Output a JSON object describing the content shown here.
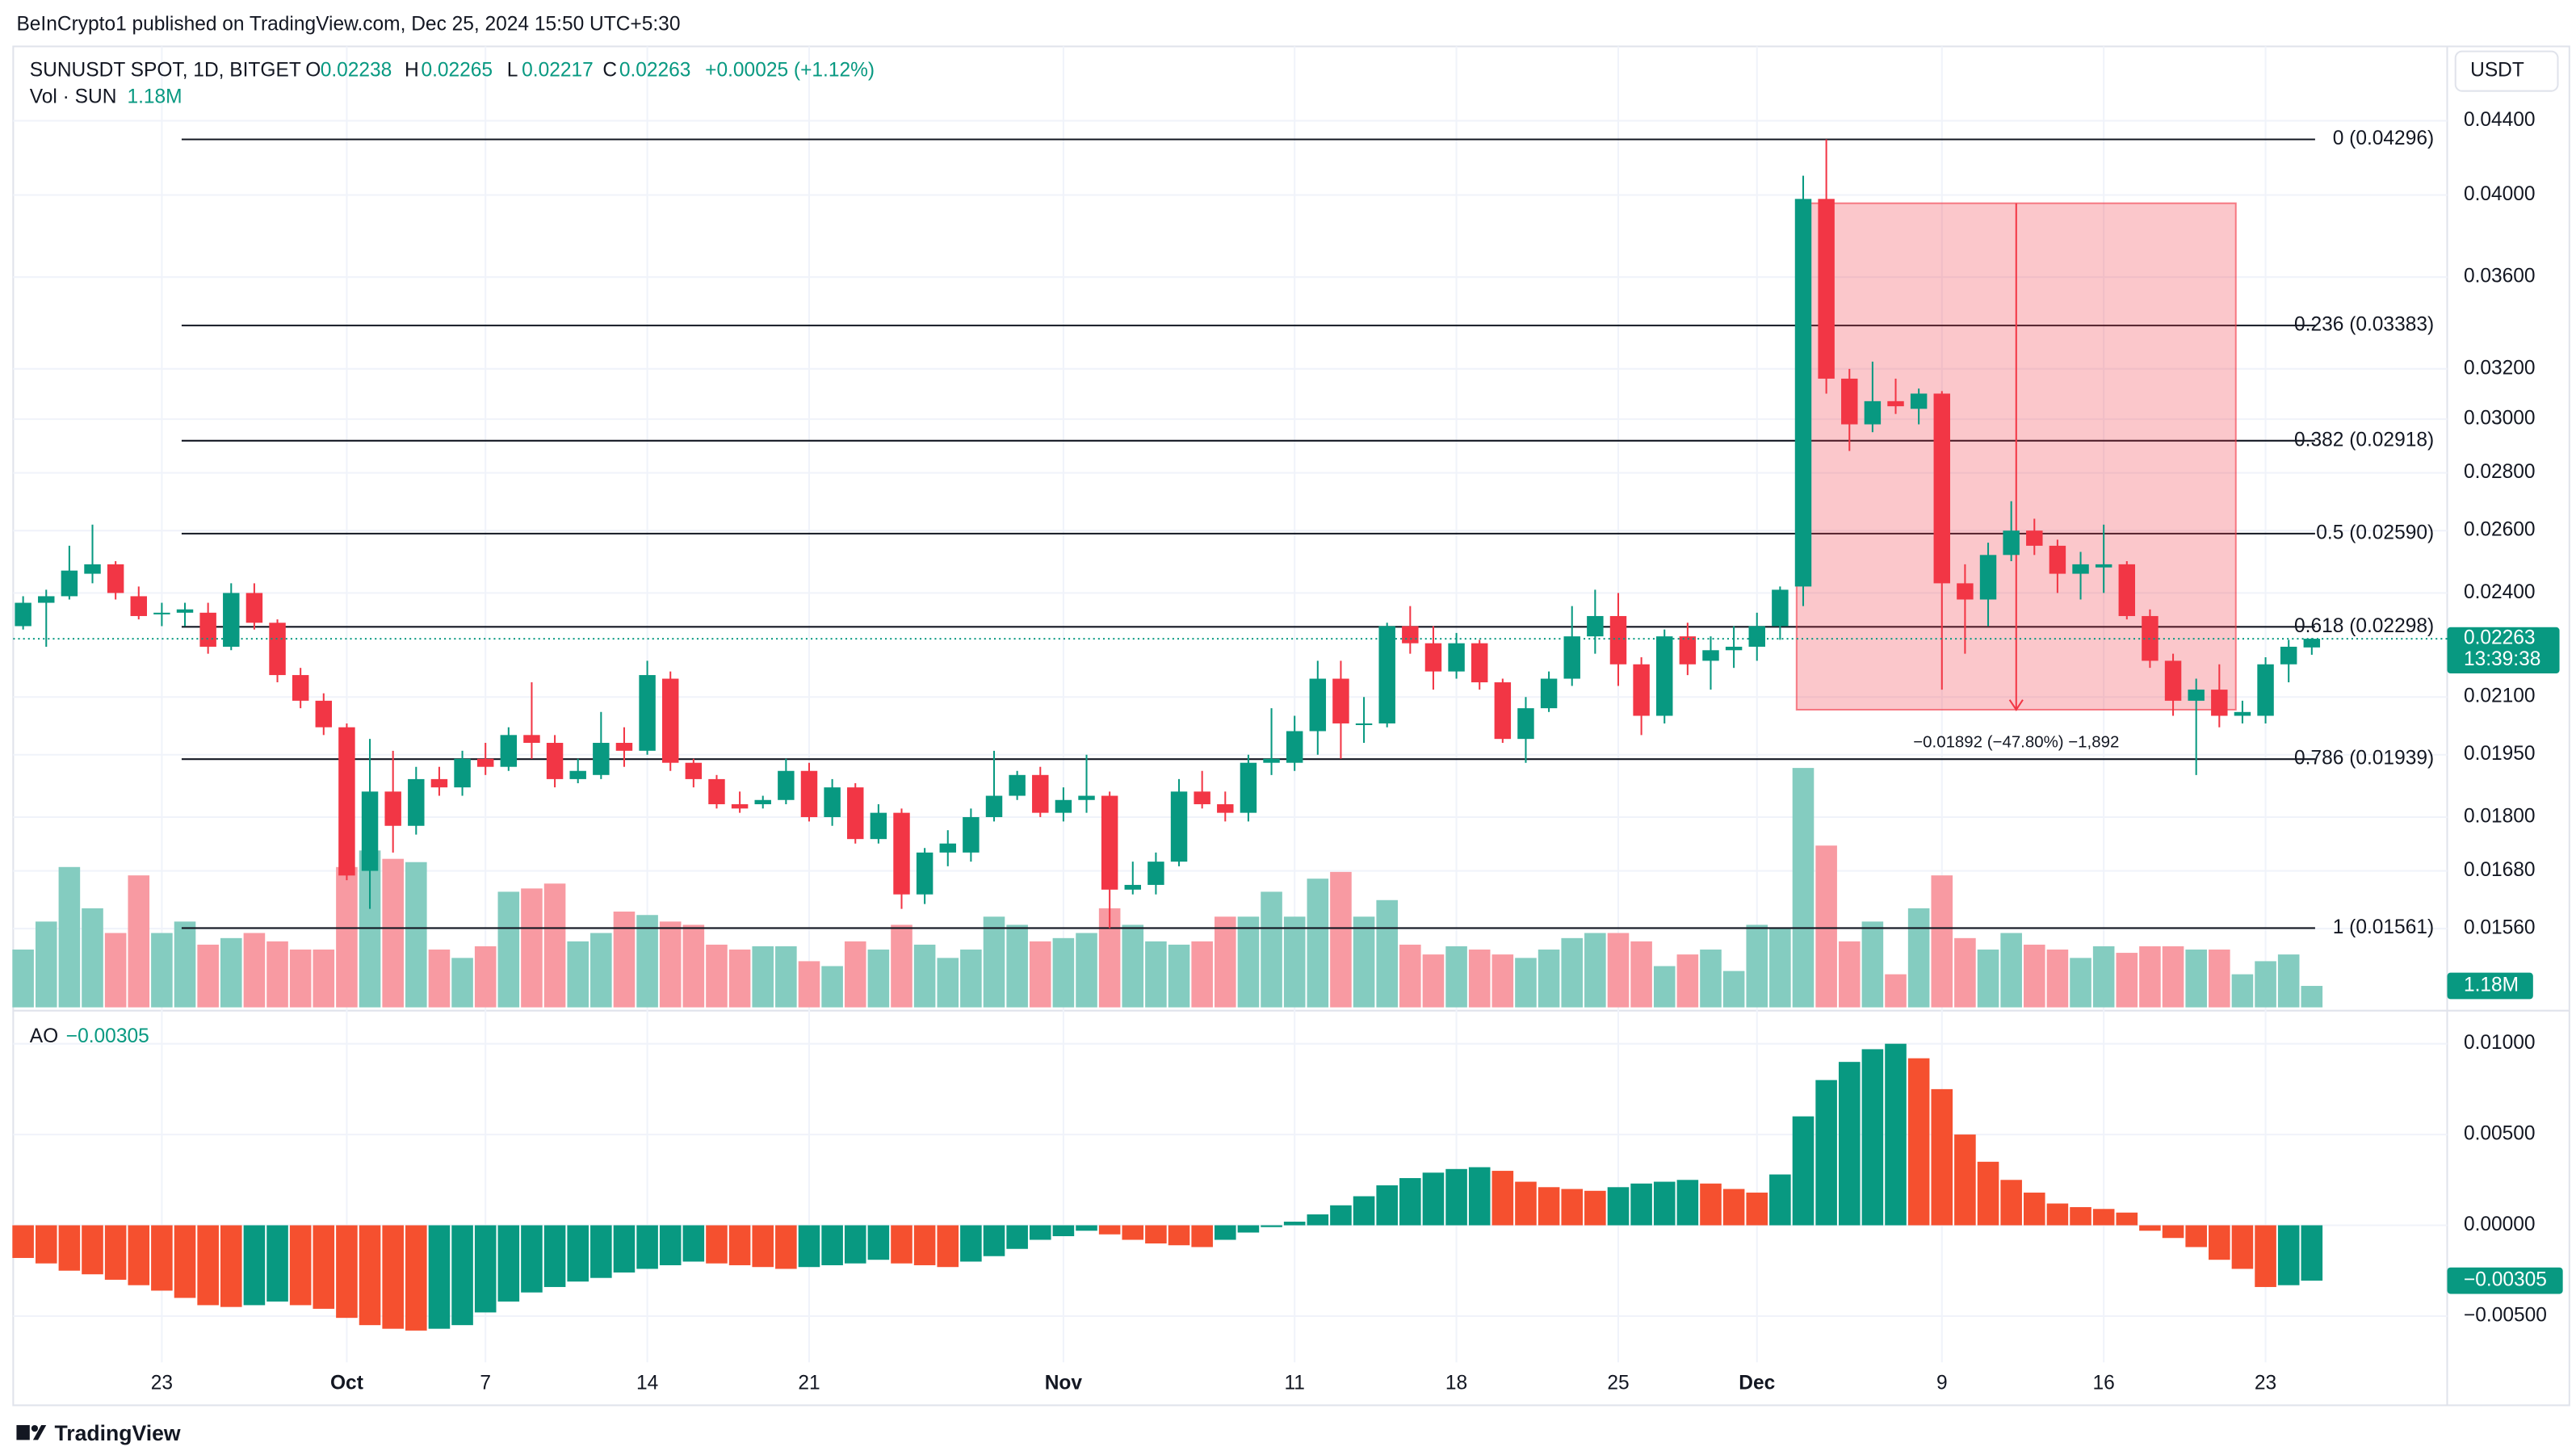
{
  "chart_data": {
    "type": "candlestick",
    "published": "BeInCrypto1 published on TradingView.com, Dec 25, 2024 15:50 UTC+5:30",
    "title": "SUNUSDT SPOT, 1D, BITGET",
    "currency": "USDT",
    "legend_labels": [
      "O",
      "H",
      "L",
      "C"
    ],
    "change_label": "+0.00025 (+1.12%)",
    "countdown": "13:39:38",
    "up_color": "#089981",
    "down_color": "#f23645",
    "log_scale": true,
    "grid": true,
    "categories": [
      null,
      null,
      null,
      null,
      null,
      null,
      "23",
      null,
      null,
      null,
      null,
      null,
      null,
      null,
      "Oct",
      null,
      null,
      null,
      null,
      null,
      "7",
      null,
      null,
      null,
      null,
      null,
      null,
      "14",
      null,
      null,
      null,
      null,
      null,
      null,
      "21",
      null,
      null,
      null,
      null,
      null,
      null,
      null,
      null,
      null,
      null,
      "Nov",
      null,
      null,
      null,
      null,
      null,
      null,
      null,
      null,
      null,
      "11",
      null,
      null,
      null,
      null,
      null,
      null,
      "18",
      null,
      null,
      null,
      null,
      null,
      null,
      "25",
      null,
      null,
      null,
      null,
      null,
      "Dec",
      null,
      null,
      null,
      null,
      null,
      null,
      null,
      "9",
      null,
      null,
      null,
      null,
      null,
      null,
      "16",
      null,
      null,
      null,
      null,
      null,
      null,
      "23",
      null,
      null
    ],
    "candles": [
      [
        0.023,
        0.0239,
        0.0229,
        0.0237
      ],
      [
        0.0237,
        0.0241,
        0.0224,
        0.0239
      ],
      [
        0.0239,
        0.0255,
        0.0238,
        0.0247
      ],
      [
        0.0246,
        0.0262,
        0.0243,
        0.0249
      ],
      [
        0.0249,
        0.025,
        0.0238,
        0.024
      ],
      [
        0.0239,
        0.0242,
        0.0232,
        0.0233
      ],
      [
        0.0234,
        0.0237,
        0.023,
        0.0234
      ],
      [
        0.0234,
        0.0237,
        0.023,
        0.0235
      ],
      [
        0.0234,
        0.0237,
        0.0222,
        0.0224
      ],
      [
        0.0224,
        0.0243,
        0.0223,
        0.024
      ],
      [
        0.024,
        0.0243,
        0.0229,
        0.0231
      ],
      [
        0.0231,
        0.0232,
        0.0214,
        0.0216
      ],
      [
        0.0216,
        0.0218,
        0.0207,
        0.0209
      ],
      [
        0.0209,
        0.0211,
        0.02,
        0.0202
      ],
      [
        0.0202,
        0.0203,
        0.0166,
        0.0167
      ],
      [
        0.0168,
        0.0199,
        0.016,
        0.0186
      ],
      [
        0.0186,
        0.0196,
        0.0172,
        0.0178
      ],
      [
        0.0178,
        0.0192,
        0.0176,
        0.0189
      ],
      [
        0.0189,
        0.0192,
        0.0185,
        0.0187
      ],
      [
        0.0187,
        0.0196,
        0.0185,
        0.0194
      ],
      [
        0.0194,
        0.0198,
        0.019,
        0.0192
      ],
      [
        0.0192,
        0.0202,
        0.0191,
        0.02
      ],
      [
        0.02,
        0.0214,
        0.0194,
        0.0198
      ],
      [
        0.0198,
        0.02,
        0.0187,
        0.0189
      ],
      [
        0.0189,
        0.0194,
        0.0188,
        0.0191
      ],
      [
        0.019,
        0.0206,
        0.0189,
        0.0198
      ],
      [
        0.0198,
        0.0202,
        0.0192,
        0.0196
      ],
      [
        0.0196,
        0.022,
        0.0195,
        0.0216
      ],
      [
        0.0215,
        0.0217,
        0.0191,
        0.0193
      ],
      [
        0.0193,
        0.0194,
        0.0187,
        0.0189
      ],
      [
        0.0189,
        0.019,
        0.0182,
        0.0183
      ],
      [
        0.0183,
        0.0186,
        0.0181,
        0.0182
      ],
      [
        0.0183,
        0.0185,
        0.0182,
        0.0184
      ],
      [
        0.0184,
        0.0194,
        0.0183,
        0.0191
      ],
      [
        0.0191,
        0.0193,
        0.0179,
        0.018
      ],
      [
        0.018,
        0.0189,
        0.0178,
        0.0187
      ],
      [
        0.0187,
        0.0188,
        0.0174,
        0.0175
      ],
      [
        0.0175,
        0.0183,
        0.0174,
        0.0181
      ],
      [
        0.0181,
        0.0182,
        0.016,
        0.0163
      ],
      [
        0.0163,
        0.0173,
        0.0161,
        0.0172
      ],
      [
        0.0172,
        0.0177,
        0.0169,
        0.0174
      ],
      [
        0.0172,
        0.0182,
        0.017,
        0.018
      ],
      [
        0.018,
        0.0196,
        0.0179,
        0.0185
      ],
      [
        0.0185,
        0.0191,
        0.0184,
        0.019
      ],
      [
        0.019,
        0.0192,
        0.018,
        0.0181
      ],
      [
        0.0181,
        0.0187,
        0.0179,
        0.0184
      ],
      [
        0.0184,
        0.0195,
        0.0181,
        0.0185
      ],
      [
        0.0185,
        0.0186,
        0.01561,
        0.0164
      ],
      [
        0.0164,
        0.017,
        0.0163,
        0.0165
      ],
      [
        0.0165,
        0.0172,
        0.0163,
        0.017
      ],
      [
        0.017,
        0.0189,
        0.0169,
        0.0186
      ],
      [
        0.0186,
        0.0191,
        0.0182,
        0.0183
      ],
      [
        0.0183,
        0.0186,
        0.0179,
        0.0181
      ],
      [
        0.0181,
        0.0195,
        0.0179,
        0.0193
      ],
      [
        0.0193,
        0.0207,
        0.019,
        0.0194
      ],
      [
        0.0193,
        0.0205,
        0.0191,
        0.0201
      ],
      [
        0.0201,
        0.022,
        0.0195,
        0.0215
      ],
      [
        0.0215,
        0.022,
        0.0194,
        0.0203
      ],
      [
        0.0203,
        0.021,
        0.0198,
        0.0203
      ],
      [
        0.0203,
        0.0231,
        0.0202,
        0.023
      ],
      [
        0.023,
        0.0236,
        0.0222,
        0.0225
      ],
      [
        0.0225,
        0.023,
        0.0212,
        0.0217
      ],
      [
        0.0217,
        0.0228,
        0.0215,
        0.0225
      ],
      [
        0.0225,
        0.0226,
        0.0212,
        0.0214
      ],
      [
        0.0214,
        0.0215,
        0.0198,
        0.0199
      ],
      [
        0.0199,
        0.021,
        0.0193,
        0.0207
      ],
      [
        0.0207,
        0.0217,
        0.0206,
        0.0215
      ],
      [
        0.0215,
        0.0236,
        0.0213,
        0.0227
      ],
      [
        0.0227,
        0.0241,
        0.0222,
        0.0233
      ],
      [
        0.0233,
        0.024,
        0.0213,
        0.0219
      ],
      [
        0.0219,
        0.0221,
        0.02,
        0.0205
      ],
      [
        0.0205,
        0.0229,
        0.0203,
        0.0227
      ],
      [
        0.0227,
        0.0231,
        0.0216,
        0.0219
      ],
      [
        0.022,
        0.0227,
        0.0212,
        0.0223
      ],
      [
        0.0223,
        0.023,
        0.0218,
        0.0224
      ],
      [
        0.0224,
        0.0234,
        0.022,
        0.023
      ],
      [
        0.023,
        0.0242,
        0.0226,
        0.0241
      ],
      [
        0.0242,
        0.041,
        0.0236,
        0.0398
      ],
      [
        0.0398,
        0.04296,
        0.031,
        0.0316
      ],
      [
        0.0316,
        0.032,
        0.0288,
        0.0298
      ],
      [
        0.0298,
        0.0323,
        0.0295,
        0.0307
      ],
      [
        0.0307,
        0.0316,
        0.0302,
        0.0305
      ],
      [
        0.0304,
        0.0312,
        0.0298,
        0.031
      ],
      [
        0.031,
        0.0311,
        0.0212,
        0.0243
      ],
      [
        0.0243,
        0.0249,
        0.0222,
        0.0238
      ],
      [
        0.0238,
        0.0256,
        0.023,
        0.0252
      ],
      [
        0.0252,
        0.027,
        0.025,
        0.026
      ],
      [
        0.026,
        0.0264,
        0.0252,
        0.0255
      ],
      [
        0.0255,
        0.0257,
        0.024,
        0.0246
      ],
      [
        0.0246,
        0.0253,
        0.0238,
        0.0249
      ],
      [
        0.0248,
        0.0262,
        0.024,
        0.0249
      ],
      [
        0.0249,
        0.025,
        0.0232,
        0.0233
      ],
      [
        0.0233,
        0.0235,
        0.0218,
        0.022
      ],
      [
        0.022,
        0.0222,
        0.0205,
        0.0209
      ],
      [
        0.0209,
        0.0215,
        0.019,
        0.0212
      ],
      [
        0.0212,
        0.0219,
        0.0202,
        0.0205
      ],
      [
        0.0205,
        0.0209,
        0.0203,
        0.0206
      ],
      [
        0.0205,
        0.0221,
        0.0203,
        0.0219
      ],
      [
        0.0219,
        0.0226,
        0.0214,
        0.0224
      ],
      [
        0.02238,
        0.02265,
        0.02217,
        0.02263
      ]
    ],
    "ylim": [
      0.0141,
      0.0482
    ],
    "yticks": [
      {
        "value": 0.044,
        "label": "0.04400"
      },
      {
        "value": 0.04,
        "label": "0.04000"
      },
      {
        "value": 0.036,
        "label": "0.03600"
      },
      {
        "value": 0.032,
        "label": "0.03200"
      },
      {
        "value": 0.03,
        "label": "0.03000"
      },
      {
        "value": 0.028,
        "label": "0.02800"
      },
      {
        "value": 0.026,
        "label": "0.02600"
      },
      {
        "value": 0.024,
        "label": "0.02400"
      },
      {
        "value": 0.021,
        "label": "0.02100"
      },
      {
        "value": 0.0195,
        "label": "0.01950"
      },
      {
        "value": 0.018,
        "label": "0.01800"
      },
      {
        "value": 0.0168,
        "label": "0.01680"
      },
      {
        "value": 0.0156,
        "label": "0.01560"
      }
    ],
    "fib": [
      {
        "value": 0.04296,
        "label": "0 (0.04296)"
      },
      {
        "value": 0.03383,
        "label": "0.236 (0.03383)"
      },
      {
        "value": 0.02918,
        "label": "0.382 (0.02918)"
      },
      {
        "value": 0.0259,
        "label": "0.5 (0.02590)"
      },
      {
        "value": 0.02298,
        "label": "0.618 (0.02298)"
      },
      {
        "value": 0.01939,
        "label": "0.786 (0.01939)"
      },
      {
        "value": 0.01561,
        "label": "1 (0.01561)"
      }
    ],
    "measure": {
      "label": "−0.01892 (−47.80%) −1,892",
      "top": 0.03958,
      "bottom": 0.02066,
      "start": 77,
      "end": 96
    },
    "volume": {
      "name": "Vol · SUN",
      "up_color": "#84ccc0",
      "down_color": "#f89aa2",
      "values": [
        3.18,
        4.72,
        7.72,
        5.45,
        4.09,
        7.26,
        4.09,
        4.72,
        3.45,
        3.81,
        4.09,
        3.63,
        3.18,
        3.18,
        7.72,
        8.63,
        8.17,
        7.99,
        3.18,
        2.72,
        3.36,
        6.36,
        6.54,
        6.81,
        3.63,
        4.09,
        5.27,
        5.08,
        4.72,
        4.54,
        3.45,
        3.18,
        3.36,
        3.36,
        2.54,
        2.27,
        3.63,
        3.18,
        4.54,
        3.45,
        2.72,
        3.18,
        4.99,
        4.54,
        3.63,
        3.81,
        4.09,
        5.45,
        4.54,
        3.63,
        3.45,
        3.63,
        4.99,
        4.99,
        6.36,
        4.99,
        7.08,
        7.45,
        4.99,
        5.9,
        3.45,
        2.91,
        3.36,
        3.18,
        2.91,
        2.72,
        3.18,
        3.81,
        4.09,
        4.09,
        3.63,
        2.27,
        2.91,
        3.18,
        2.0,
        4.54,
        4.36,
        13.17,
        8.9,
        3.63,
        4.72,
        1.82,
        5.45,
        7.26,
        3.81,
        3.18,
        4.09,
        3.45,
        3.18,
        2.72,
        3.36,
        3.0,
        3.36,
        3.36,
        3.18,
        3.18,
        1.82,
        2.54,
        2.91,
        1.18
      ],
      "value_labels": [
        null,
        null,
        null,
        null,
        null,
        null,
        null,
        null,
        null,
        null,
        null,
        null,
        null,
        null,
        null,
        null,
        null,
        null,
        null,
        null,
        null,
        null,
        null,
        null,
        null,
        null,
        null,
        null,
        null,
        null,
        null,
        null,
        null,
        null,
        null,
        null,
        null,
        null,
        null,
        null,
        null,
        null,
        null,
        null,
        null,
        null,
        null,
        null,
        null,
        null,
        null,
        null,
        null,
        null,
        null,
        null,
        null,
        null,
        null,
        null,
        null,
        null,
        null,
        null,
        null,
        null,
        null,
        null,
        null,
        null,
        null,
        null,
        null,
        null,
        null,
        null,
        null,
        null,
        null,
        null,
        null,
        null,
        null,
        null,
        null,
        null,
        null,
        null,
        null,
        null,
        null,
        null,
        null,
        null,
        null,
        null,
        null,
        null,
        null,
        "1.18M"
      ]
    },
    "ao": {
      "name": "AO",
      "up_color": "#089981",
      "down_color": "#f5502f",
      "ylim": [
        -0.00755,
        0.01155
      ],
      "yticks": [
        {
          "value": 0.01,
          "label": "0.01000"
        },
        {
          "value": 0.005,
          "label": "0.00500"
        },
        {
          "value": 0,
          "label": "0.00000"
        },
        {
          "value": -0.005,
          "label": "−0.00500"
        }
      ],
      "values": [
        -0.0018,
        -0.0021,
        -0.0025,
        -0.0027,
        -0.003,
        -0.0033,
        -0.0036,
        -0.004,
        -0.0044,
        -0.0045,
        -0.0044,
        -0.0042,
        -0.0044,
        -0.0046,
        -0.0051,
        -0.0055,
        -0.0057,
        -0.0058,
        -0.0057,
        -0.0055,
        -0.0048,
        -0.0042,
        -0.0037,
        -0.0034,
        -0.0031,
        -0.0029,
        -0.0026,
        -0.0024,
        -0.0022,
        -0.002,
        -0.0021,
        -0.0022,
        -0.0023,
        -0.0024,
        -0.0023,
        -0.0022,
        -0.0021,
        -0.0019,
        -0.0021,
        -0.0022,
        -0.0023,
        -0.002,
        -0.0017,
        -0.0013,
        -0.0008,
        -0.0006,
        -0.0003,
        -0.0005,
        -0.0008,
        -0.001,
        -0.0011,
        -0.0012,
        -0.0008,
        -0.0004,
        -0.0001,
        0.0002,
        0.0006,
        0.0011,
        0.0016,
        0.0022,
        0.0026,
        0.0029,
        0.0031,
        0.0032,
        0.003,
        0.0024,
        0.0021,
        0.002,
        0.0019,
        0.0021,
        0.0023,
        0.0024,
        0.0025,
        0.0023,
        0.002,
        0.0018,
        0.0028,
        0.006,
        0.008,
        0.009,
        0.0097,
        0.01,
        0.0092,
        0.0075,
        0.005,
        0.0035,
        0.0025,
        0.0018,
        0.0012,
        0.001,
        0.0009,
        0.0007,
        -0.0003,
        -0.0007,
        -0.0012,
        -0.0019,
        -0.0024,
        -0.0034,
        -0.0033,
        -0.00305
      ],
      "value_labels": [
        null,
        null,
        null,
        null,
        null,
        null,
        null,
        null,
        null,
        null,
        null,
        null,
        null,
        null,
        null,
        null,
        null,
        null,
        null,
        null,
        null,
        null,
        null,
        null,
        null,
        null,
        null,
        null,
        null,
        null,
        null,
        null,
        null,
        null,
        null,
        null,
        null,
        null,
        null,
        null,
        null,
        null,
        null,
        null,
        null,
        null,
        null,
        null,
        null,
        null,
        null,
        null,
        null,
        null,
        null,
        null,
        null,
        null,
        null,
        null,
        null,
        null,
        null,
        null,
        null,
        null,
        null,
        null,
        null,
        null,
        null,
        null,
        null,
        null,
        null,
        null,
        null,
        null,
        null,
        null,
        null,
        null,
        null,
        null,
        null,
        null,
        null,
        null,
        null,
        null,
        null,
        null,
        null,
        null,
        null,
        null,
        null,
        null,
        null,
        "−0.00305"
      ]
    }
  },
  "footer": "TradingView"
}
